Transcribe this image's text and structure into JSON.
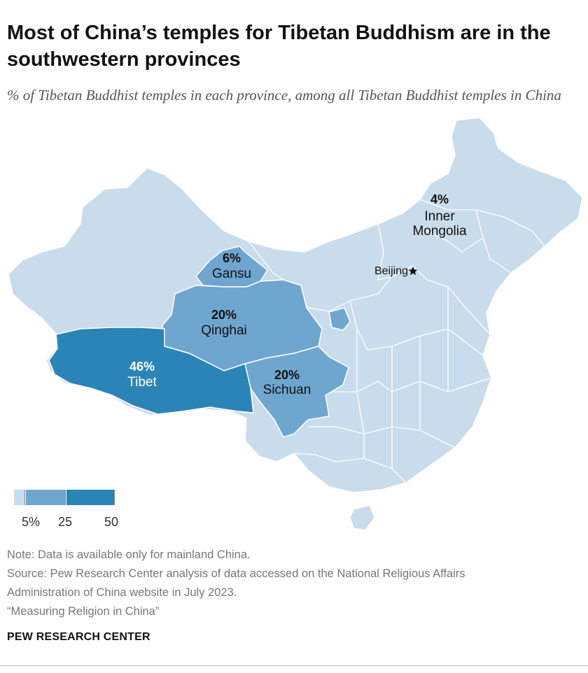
{
  "header": {
    "title": "Most of China’s temples for Tibetan Buddhism are in the southwestern provinces",
    "subtitle": "% of Tibetan Buddhist temples in each province, among all Tibetan Buddhist temples in China"
  },
  "colors": {
    "low": "#c8dcec",
    "mid": "#6fa6d0",
    "high": "#2b84b6",
    "border": "#ffffff"
  },
  "map": {
    "provinces": [
      {
        "name": "Tibet",
        "pct": "46%",
        "value": 46
      },
      {
        "name": "Qinghai",
        "pct": "20%",
        "value": 20
      },
      {
        "name": "Sichuan",
        "pct": "20%",
        "value": 20
      },
      {
        "name": "Gansu",
        "pct": "6%",
        "value": 6
      },
      {
        "name": "Inner Mongolia",
        "name_line1": "Inner",
        "name_line2": "Mongolia",
        "pct": "4%",
        "value": 4
      }
    ],
    "capital": "Beijing",
    "capital_icon": "star-icon"
  },
  "legend": {
    "ticks": [
      "5%",
      "25",
      "50"
    ],
    "bins": [
      0,
      5,
      25,
      50
    ]
  },
  "footer": {
    "note": "Note: Data is available only for mainland China.",
    "source_line1": "Source: Pew Research Center analysis of data accessed on the National Religious Affairs",
    "source_line2": "Administration of China website in July 2023.",
    "report": "“Measuring Religion in China”",
    "brand": "PEW RESEARCH CENTER"
  }
}
